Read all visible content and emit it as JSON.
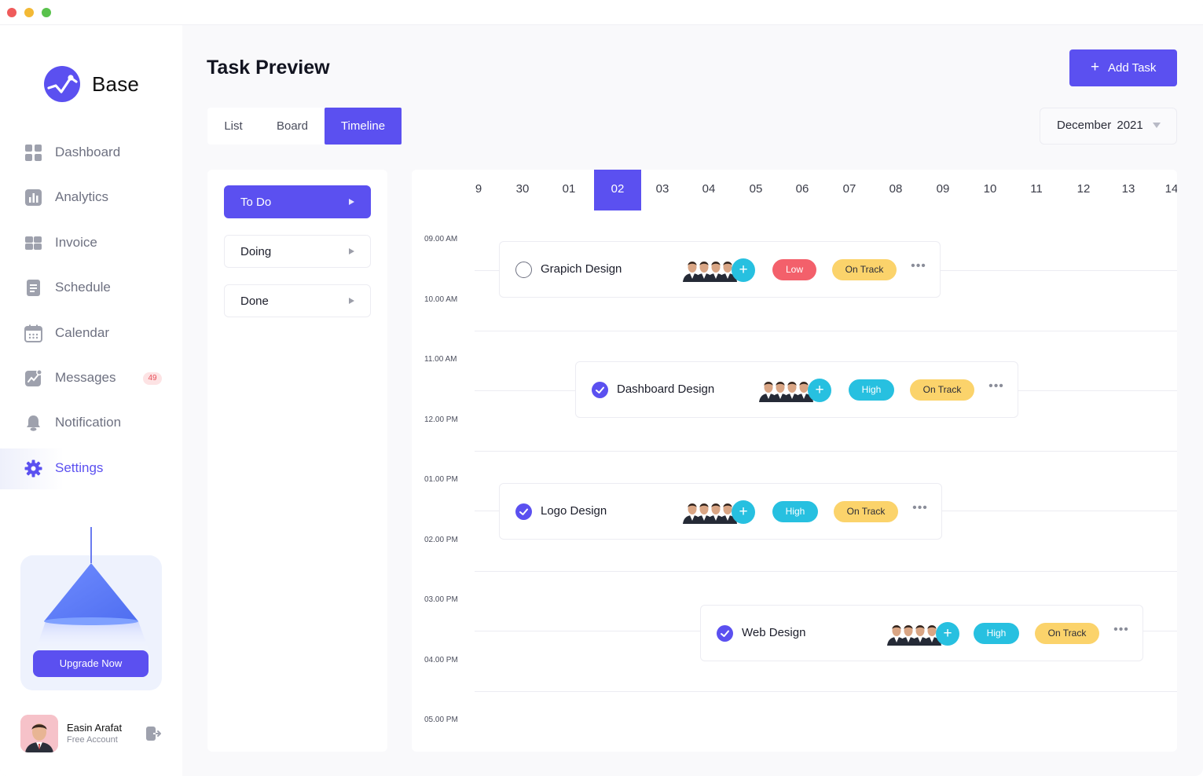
{
  "app": {
    "name": "Base",
    "accent": "#5b50f0"
  },
  "sidebar": {
    "items": [
      {
        "label": "Dashboard"
      },
      {
        "label": "Analytics"
      },
      {
        "label": "Invoice"
      },
      {
        "label": "Schedule"
      },
      {
        "label": "Calendar"
      },
      {
        "label": "Messages",
        "badge": "49"
      },
      {
        "label": "Notification"
      },
      {
        "label": "Settings",
        "active": true
      }
    ],
    "upgrade": {
      "button_label": "Upgrade Now"
    },
    "user": {
      "name": "Easin Arafat",
      "role": "Free Account"
    }
  },
  "header": {
    "title": "Task Preview",
    "add_task_plus": "+",
    "add_task_label": "Add Task"
  },
  "view_tabs": [
    {
      "label": "List"
    },
    {
      "label": "Board"
    },
    {
      "label": "Timeline",
      "active": true
    }
  ],
  "month_select": {
    "value": "December 2021"
  },
  "status_filters": [
    {
      "label": "To Do",
      "active": true
    },
    {
      "label": "Doing"
    },
    {
      "label": "Done"
    }
  ],
  "timeline": {
    "days": [
      "9",
      "30",
      "01",
      "02",
      "03",
      "04",
      "05",
      "06",
      "07",
      "08",
      "09",
      "10",
      "11",
      "12",
      "13",
      "14"
    ],
    "active_day": "02",
    "hours": [
      "09.00 AM",
      "10.00 AM",
      "11.00 AM",
      "12.00 PM",
      "01.00 PM",
      "02.00 PM",
      "03.00 PM",
      "04.00 PM",
      "05.00 PM"
    ],
    "add_member_symbol": "+",
    "more_symbol": "•••",
    "tasks": [
      {
        "title": "Grapich Design",
        "done": false,
        "priority": "Low",
        "status": "On Track"
      },
      {
        "title": "Dashboard Design",
        "done": true,
        "priority": "High",
        "status": "On Track"
      },
      {
        "title": "Logo Design",
        "done": true,
        "priority": "High",
        "status": "On Track"
      },
      {
        "title": "Web Design",
        "done": true,
        "priority": "High",
        "status": "On Track"
      }
    ]
  }
}
